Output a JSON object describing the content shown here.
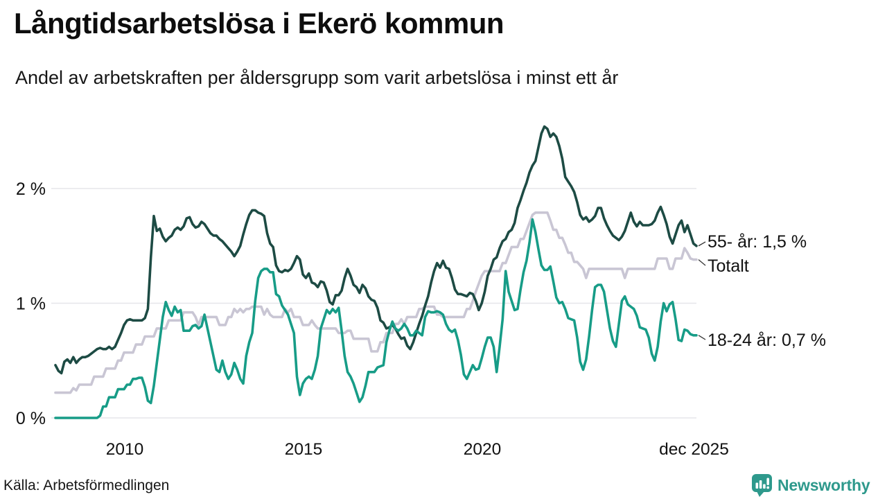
{
  "header": {
    "title": "Långtidsarbetslösa i Ekerö kommun",
    "subtitle": "Andel av arbetskraften per åldersgrupp som varit arbetslösa i minst ett år"
  },
  "footer": {
    "source": "Källa: Arbetsförmedlingen",
    "brand": "Newsworthy"
  },
  "colors": {
    "age55": "#1d4b44",
    "total": "#c9c6d4",
    "age1824": "#179c87",
    "grid": "#e5e5ea",
    "text": "#111111",
    "connector": "#333333",
    "brand": "#2e998c"
  },
  "chart_data": {
    "type": "line",
    "title": "Långtidsarbetslösa i Ekerö kommun",
    "subtitle": "Andel av arbetskraften per åldersgrupp som varit arbetslösa i minst ett år",
    "unit": "%",
    "start": "2008-01",
    "end": "2025-12",
    "frequency": "monthly",
    "ylim": [
      0,
      2.6
    ],
    "grid": "horizontal-only",
    "legend_position": "right-end-labels",
    "yticks": [
      {
        "value": 0,
        "label": "0 %"
      },
      {
        "value": 1,
        "label": "1 %"
      },
      {
        "value": 2,
        "label": "2 %"
      }
    ],
    "xticks": [
      {
        "year": 2010.0,
        "label": "2010"
      },
      {
        "year": 2015.0,
        "label": "2015"
      },
      {
        "year": 2020.0,
        "label": "2020"
      },
      {
        "year": 2025.92,
        "label": "dec 2025"
      }
    ],
    "series": [
      {
        "name": "55- år",
        "end_label": "55- år: 1,5 %",
        "end_value": 1.5,
        "color": "#1d4b44",
        "values": [
          0.46,
          0.41,
          0.39,
          0.49,
          0.51,
          0.48,
          0.53,
          0.48,
          0.51,
          0.53,
          0.53,
          0.54,
          0.56,
          0.58,
          0.6,
          0.61,
          0.6,
          0.6,
          0.62,
          0.6,
          0.62,
          0.68,
          0.74,
          0.81,
          0.85,
          0.86,
          0.85,
          0.85,
          0.85,
          0.85,
          0.87,
          0.95,
          1.4,
          1.76,
          1.63,
          1.65,
          1.58,
          1.54,
          1.57,
          1.59,
          1.64,
          1.66,
          1.64,
          1.67,
          1.74,
          1.75,
          1.69,
          1.66,
          1.67,
          1.71,
          1.69,
          1.65,
          1.61,
          1.59,
          1.59,
          1.56,
          1.54,
          1.51,
          1.48,
          1.45,
          1.41,
          1.45,
          1.5,
          1.6,
          1.69,
          1.77,
          1.81,
          1.81,
          1.79,
          1.78,
          1.76,
          1.61,
          1.52,
          1.49,
          1.33,
          1.28,
          1.27,
          1.29,
          1.28,
          1.3,
          1.35,
          1.41,
          1.38,
          1.25,
          1.22,
          1.26,
          1.18,
          1.17,
          1.14,
          1.19,
          1.18,
          1.11,
          1.01,
          0.99,
          1.07,
          1.07,
          1.11,
          1.22,
          1.3,
          1.24,
          1.16,
          1.14,
          1.09,
          1.16,
          1.13,
          1.06,
          1.03,
          1.02,
          0.96,
          0.85,
          0.83,
          0.78,
          0.79,
          0.81,
          0.78,
          0.73,
          0.69,
          0.7,
          0.63,
          0.6,
          0.66,
          0.74,
          0.82,
          0.89,
          0.98,
          1.06,
          1.18,
          1.28,
          1.35,
          1.31,
          1.37,
          1.31,
          1.3,
          1.22,
          1.12,
          1.08,
          1.08,
          1.07,
          1.06,
          1.09,
          1.08,
          1.02,
          0.94,
          1.0,
          1.1,
          1.24,
          1.3,
          1.38,
          1.4,
          1.48,
          1.54,
          1.56,
          1.62,
          1.64,
          1.7,
          1.83,
          1.9,
          1.98,
          2.05,
          2.14,
          2.2,
          2.24,
          2.36,
          2.48,
          2.54,
          2.52,
          2.45,
          2.48,
          2.45,
          2.37,
          2.26,
          2.1,
          2.06,
          2.02,
          1.97,
          1.88,
          1.77,
          1.73,
          1.75,
          1.71,
          1.73,
          1.76,
          1.83,
          1.83,
          1.74,
          1.68,
          1.63,
          1.59,
          1.57,
          1.55,
          1.58,
          1.63,
          1.71,
          1.79,
          1.71,
          1.67,
          1.71,
          1.68,
          1.68,
          1.68,
          1.69,
          1.72,
          1.79,
          1.84,
          1.77,
          1.69,
          1.58,
          1.52,
          1.6,
          1.68,
          1.72,
          1.62,
          1.68,
          1.6,
          1.52,
          1.5
        ]
      },
      {
        "name": "Totalt",
        "end_label": "Totalt",
        "color": "#c9c6d4",
        "values": [
          0.22,
          0.22,
          0.22,
          0.22,
          0.22,
          0.22,
          0.26,
          0.24,
          0.29,
          0.29,
          0.29,
          0.29,
          0.29,
          0.36,
          0.36,
          0.36,
          0.36,
          0.43,
          0.43,
          0.43,
          0.43,
          0.5,
          0.5,
          0.57,
          0.57,
          0.57,
          0.57,
          0.64,
          0.64,
          0.64,
          0.71,
          0.71,
          0.71,
          0.71,
          0.78,
          0.78,
          0.78,
          0.78,
          0.85,
          0.85,
          0.85,
          0.85,
          0.85,
          0.92,
          0.92,
          0.92,
          0.92,
          0.88,
          0.81,
          0.88,
          0.88,
          0.88,
          0.88,
          0.88,
          0.88,
          0.81,
          0.81,
          0.81,
          0.88,
          0.88,
          0.95,
          0.92,
          0.95,
          0.92,
          0.95,
          0.95,
          0.97,
          0.97,
          0.97,
          0.97,
          0.9,
          0.95,
          0.9,
          0.88,
          0.88,
          0.88,
          0.88,
          0.95,
          0.92,
          0.95,
          0.88,
          0.88,
          0.88,
          0.81,
          0.81,
          0.81,
          0.85,
          0.81,
          0.78,
          0.78,
          0.78,
          0.78,
          0.78,
          0.78,
          0.78,
          0.74,
          0.74,
          0.74,
          0.76,
          0.76,
          0.69,
          0.69,
          0.69,
          0.69,
          0.69,
          0.69,
          0.58,
          0.58,
          0.58,
          0.66,
          0.66,
          0.74,
          0.74,
          0.74,
          0.82,
          0.82,
          0.86,
          0.82,
          0.88,
          0.88,
          0.88,
          0.88,
          0.95,
          0.95,
          0.97,
          0.97,
          0.97,
          0.97,
          0.9,
          0.9,
          0.88,
          0.88,
          0.88,
          0.88,
          0.88,
          0.88,
          0.88,
          0.88,
          0.95,
          0.95,
          1.02,
          1.1,
          1.17,
          1.24,
          1.28,
          1.28,
          1.28,
          1.28,
          1.28,
          1.28,
          1.35,
          1.35,
          1.42,
          1.49,
          1.49,
          1.49,
          1.56,
          1.56,
          1.63,
          1.7,
          1.77,
          1.79,
          1.79,
          1.79,
          1.79,
          1.79,
          1.72,
          1.64,
          1.64,
          1.57,
          1.57,
          1.51,
          1.44,
          1.44,
          1.36,
          1.36,
          1.33,
          1.3,
          1.22,
          1.3,
          1.3,
          1.3,
          1.3,
          1.3,
          1.3,
          1.3,
          1.3,
          1.3,
          1.3,
          1.3,
          1.3,
          1.22,
          1.3,
          1.3,
          1.3,
          1.3,
          1.3,
          1.3,
          1.3,
          1.3,
          1.3,
          1.3,
          1.39,
          1.39,
          1.39,
          1.39,
          1.3,
          1.3,
          1.39,
          1.39,
          1.39,
          1.48,
          1.44,
          1.39,
          1.38,
          1.38
        ]
      },
      {
        "name": "18-24 år",
        "end_label": "18-24 år: 0,7 %",
        "end_value": 0.7,
        "color": "#179c87",
        "values": [
          0.0,
          0.0,
          0.0,
          0.0,
          0.0,
          0.0,
          0.0,
          0.0,
          0.0,
          0.0,
          0.0,
          0.0,
          0.0,
          0.0,
          0.0,
          0.02,
          0.1,
          0.1,
          0.18,
          0.18,
          0.18,
          0.25,
          0.25,
          0.25,
          0.29,
          0.29,
          0.34,
          0.34,
          0.35,
          0.35,
          0.27,
          0.15,
          0.13,
          0.28,
          0.48,
          0.68,
          0.88,
          1.01,
          0.94,
          0.89,
          0.97,
          0.92,
          0.94,
          0.76,
          0.76,
          0.76,
          0.8,
          0.81,
          0.78,
          0.8,
          0.9,
          0.78,
          0.66,
          0.54,
          0.42,
          0.4,
          0.5,
          0.4,
          0.34,
          0.38,
          0.48,
          0.42,
          0.34,
          0.3,
          0.54,
          0.66,
          0.74,
          1.02,
          1.22,
          1.28,
          1.3,
          1.3,
          1.27,
          1.27,
          1.08,
          1.06,
          0.98,
          0.94,
          0.9,
          0.82,
          0.74,
          0.36,
          0.2,
          0.3,
          0.34,
          0.36,
          0.34,
          0.42,
          0.54,
          0.78,
          0.86,
          0.94,
          0.91,
          0.95,
          0.92,
          0.96,
          0.76,
          0.54,
          0.4,
          0.36,
          0.3,
          0.22,
          0.14,
          0.18,
          0.28,
          0.4,
          0.4,
          0.4,
          0.44,
          0.45,
          0.46,
          0.66,
          0.76,
          0.84,
          0.78,
          0.76,
          0.78,
          0.82,
          0.78,
          0.72,
          0.72,
          0.76,
          0.74,
          0.72,
          0.88,
          0.93,
          0.92,
          0.92,
          0.93,
          0.92,
          0.9,
          0.82,
          0.77,
          0.75,
          0.77,
          0.68,
          0.55,
          0.38,
          0.34,
          0.4,
          0.46,
          0.42,
          0.43,
          0.52,
          0.62,
          0.7,
          0.7,
          0.62,
          0.4,
          0.62,
          0.86,
          1.28,
          1.1,
          1.02,
          0.94,
          0.95,
          1.12,
          1.27,
          1.37,
          1.53,
          1.73,
          1.62,
          1.47,
          1.33,
          1.29,
          1.29,
          1.32,
          1.19,
          1.05,
          1.0,
          1.01,
          0.95,
          0.87,
          0.86,
          0.85,
          0.7,
          0.49,
          0.42,
          0.51,
          0.71,
          0.94,
          1.14,
          1.16,
          1.16,
          1.1,
          0.94,
          0.78,
          0.67,
          0.62,
          0.82,
          1.02,
          1.06,
          0.99,
          0.97,
          0.95,
          0.89,
          0.79,
          0.78,
          0.77,
          0.7,
          0.56,
          0.5,
          0.62,
          0.84,
          1.0,
          0.93,
          0.99,
          1.01,
          0.86,
          0.68,
          0.67,
          0.77,
          0.76,
          0.73,
          0.72,
          0.72
        ]
      }
    ]
  }
}
